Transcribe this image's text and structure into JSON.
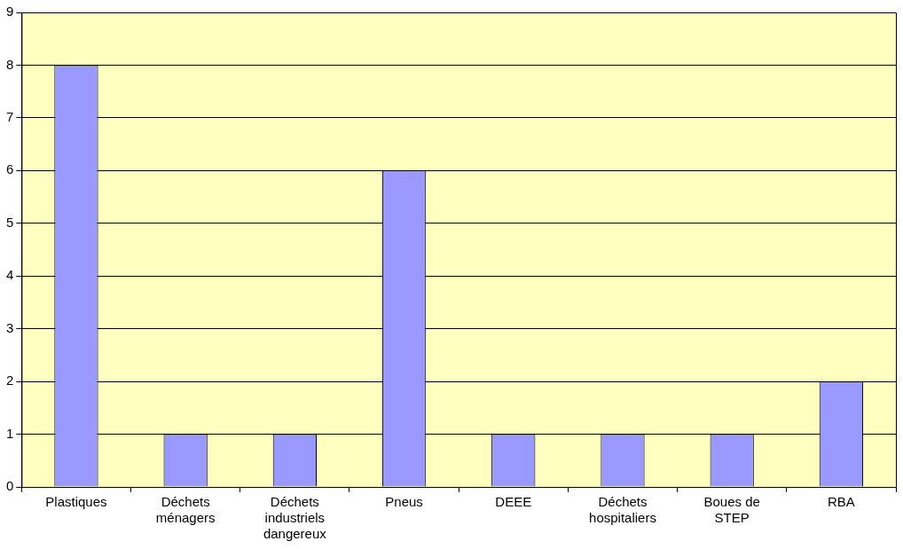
{
  "chart_data": {
    "type": "bar",
    "categories": [
      "Plastiques",
      "Déchets ménagers",
      "Déchets industriels dangereux",
      "Pneus",
      "DEEE",
      "Déchets hospitaliers",
      "Boues de STEP",
      "RBA"
    ],
    "values": [
      8,
      1,
      1,
      6,
      1,
      1,
      1,
      2
    ],
    "color": "#9999ff",
    "ylim": [
      0,
      9
    ],
    "yticks": [
      0,
      1,
      2,
      3,
      4,
      5,
      6,
      7,
      8,
      9
    ],
    "grid": "y",
    "legend": false
  }
}
